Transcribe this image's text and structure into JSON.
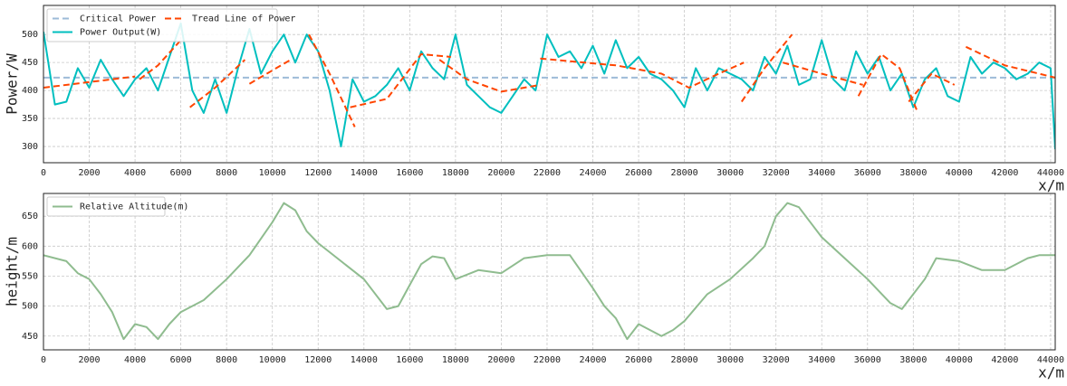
{
  "chart_data": [
    {
      "type": "line",
      "ylabel": "Power/W",
      "xlabel": "x/m",
      "xlim": [
        0,
        44200
      ],
      "ylim": [
        271,
        552
      ],
      "xticks": [
        0,
        2000,
        4000,
        6000,
        8000,
        10000,
        12000,
        14000,
        16000,
        18000,
        20000,
        22000,
        24000,
        26000,
        28000,
        30000,
        32000,
        34000,
        36000,
        38000,
        40000,
        42000,
        44000
      ],
      "yticks": [
        300,
        350,
        400,
        450,
        500
      ],
      "grid": true,
      "legend": "upper left",
      "legend_columns": 2,
      "series": [
        {
          "name": "Critical Power",
          "color": "#9dbbd8",
          "dash": true,
          "x": [
            0,
            44200
          ],
          "values": [
            423,
            423
          ]
        },
        {
          "name": "Power Output(W)",
          "color": "#00bfbf",
          "dash": false,
          "x": [
            0,
            500,
            1000,
            1500,
            2000,
            2500,
            3000,
            3500,
            4000,
            4500,
            5000,
            5500,
            6000,
            6500,
            7000,
            7500,
            8000,
            8500,
            9000,
            9500,
            10000,
            10500,
            11000,
            11500,
            12000,
            12500,
            13000,
            13500,
            14000,
            14500,
            15000,
            15500,
            16000,
            16500,
            17000,
            17500,
            18000,
            18500,
            19000,
            19500,
            20000,
            20500,
            21000,
            21500,
            22000,
            22500,
            23000,
            23500,
            24000,
            24500,
            25000,
            25500,
            26000,
            26500,
            27000,
            27500,
            28000,
            28500,
            29000,
            29500,
            30000,
            30500,
            31000,
            31500,
            32000,
            32500,
            33000,
            33500,
            34000,
            34500,
            35000,
            35500,
            36000,
            36500,
            37000,
            37500,
            38000,
            38500,
            39000,
            39500,
            40000,
            40500,
            41000,
            41500,
            42000,
            42500,
            43000,
            43500,
            44000,
            44200
          ],
          "values": [
            505,
            375,
            380,
            440,
            405,
            455,
            420,
            390,
            420,
            440,
            400,
            460,
            520,
            400,
            360,
            420,
            360,
            440,
            510,
            430,
            470,
            500,
            450,
            500,
            470,
            400,
            300,
            420,
            380,
            390,
            410,
            440,
            400,
            470,
            440,
            420,
            500,
            410,
            390,
            370,
            360,
            390,
            420,
            400,
            500,
            460,
            470,
            440,
            480,
            430,
            490,
            440,
            460,
            430,
            420,
            400,
            370,
            440,
            400,
            440,
            430,
            420,
            400,
            460,
            430,
            480,
            410,
            420,
            490,
            420,
            400,
            470,
            430,
            460,
            400,
            430,
            370,
            420,
            440,
            390,
            380,
            460,
            430,
            450,
            440,
            420,
            430,
            450,
            440,
            295
          ]
        },
        {
          "name": "Tread Line of Power",
          "color": "#ff4500",
          "dash": true,
          "x": [
            0,
            2000,
            4000,
            null,
            4200,
            5000,
            6000,
            null,
            6400,
            7500,
            8800,
            null,
            9000,
            10800,
            null,
            11600,
            12500,
            13600,
            null,
            13400,
            15000,
            16500,
            17800,
            null,
            17300,
            18500,
            20000,
            21700,
            null,
            21700,
            25000,
            27000,
            28200,
            29500,
            30600,
            null,
            30500,
            31500,
            32700,
            null,
            32300,
            34000,
            35800,
            null,
            35600,
            36600,
            37400,
            38200,
            null,
            37800,
            38800,
            39800,
            null,
            40300,
            42000,
            44200
          ],
          "values": [
            405,
            415,
            425,
            null,
            420,
            445,
            490,
            null,
            370,
            405,
            455,
            null,
            412,
            455,
            null,
            500,
            430,
            335,
            null,
            370,
            385,
            465,
            460,
            null,
            455,
            420,
            398,
            410,
            null,
            457,
            445,
            430,
            405,
            430,
            450,
            null,
            380,
            440,
            500,
            null,
            450,
            430,
            410,
            null,
            390,
            465,
            440,
            360,
            null,
            380,
            430,
            410,
            null,
            478,
            445,
            423
          ]
        }
      ]
    },
    {
      "type": "line",
      "ylabel": "height/m",
      "xlabel": "x/m",
      "xlim": [
        0,
        44200
      ],
      "ylim": [
        427,
        688
      ],
      "xticks": [
        0,
        2000,
        4000,
        6000,
        8000,
        10000,
        12000,
        14000,
        16000,
        18000,
        20000,
        22000,
        24000,
        26000,
        28000,
        30000,
        32000,
        34000,
        36000,
        38000,
        40000,
        42000,
        44000
      ],
      "yticks": [
        450,
        500,
        550,
        600,
        650
      ],
      "grid": true,
      "legend": "upper left",
      "legend_columns": 1,
      "series": [
        {
          "name": "Relative Altitude(m)",
          "color": "#8fbc8f",
          "dash": false,
          "x": [
            0,
            1000,
            1500,
            2000,
            2500,
            3000,
            3500,
            4000,
            4500,
            5000,
            5500,
            6000,
            7000,
            8000,
            9000,
            10000,
            10500,
            11000,
            11500,
            12000,
            13000,
            14000,
            15000,
            15500,
            16000,
            16500,
            17000,
            17500,
            18000,
            19000,
            20000,
            21000,
            22000,
            23000,
            24000,
            24500,
            25000,
            25500,
            26000,
            27000,
            27500,
            28000,
            29000,
            30000,
            31000,
            31500,
            32000,
            32500,
            33000,
            33500,
            34000,
            35000,
            36000,
            37000,
            37500,
            38000,
            38500,
            39000,
            40000,
            41000,
            42000,
            43000,
            43500,
            44200
          ],
          "values": [
            585,
            575,
            555,
            545,
            520,
            490,
            445,
            470,
            465,
            445,
            470,
            490,
            510,
            545,
            585,
            640,
            672,
            660,
            625,
            605,
            575,
            545,
            495,
            500,
            535,
            570,
            583,
            580,
            545,
            560,
            555,
            580,
            585,
            585,
            530,
            500,
            480,
            445,
            470,
            450,
            460,
            475,
            520,
            545,
            580,
            600,
            650,
            672,
            665,
            640,
            615,
            580,
            545,
            505,
            495,
            520,
            545,
            580,
            575,
            560,
            560,
            580,
            585,
            585
          ]
        }
      ]
    }
  ]
}
